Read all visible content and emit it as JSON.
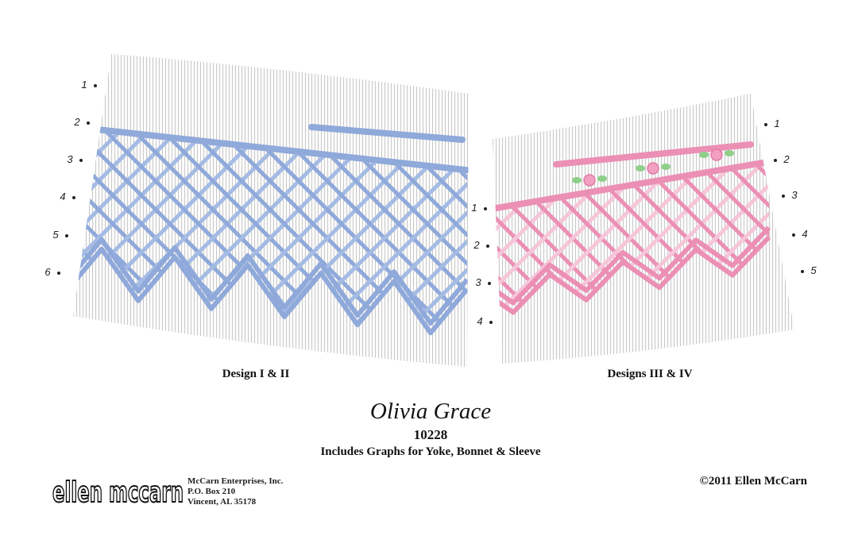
{
  "panels": [
    {
      "caption": "Design I & II",
      "left_rows": [
        "1",
        "2",
        "3",
        "4",
        "5",
        "6"
      ]
    },
    {
      "caption": "Designs III & IV",
      "left_rows": [
        "1",
        "2",
        "3",
        "4"
      ],
      "right_rows": [
        "1",
        "2",
        "3",
        "4",
        "5"
      ]
    }
  ],
  "title": {
    "name": "Olivia Grace",
    "number": "10228",
    "subtitle": "Includes Graphs for Yoke, Bonnet & Sleeve"
  },
  "footer": {
    "logo": "ellen mccarn",
    "address": [
      "McCarn Enterprises, Inc.",
      "P.O. Box 210",
      "Vincent, AL 35178"
    ],
    "copyright": "©2011 Ellen McCarn"
  }
}
